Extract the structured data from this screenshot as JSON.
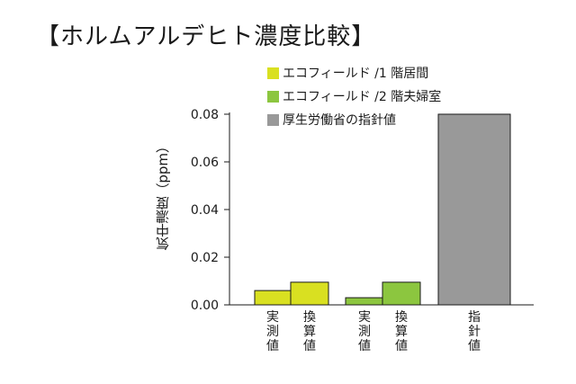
{
  "chart_data": {
    "type": "bar",
    "title": "【ホルムアルデヒト濃度比較】",
    "ylabel": "気中濃度（ppm）",
    "ylim": [
      0,
      0.08
    ],
    "yticks": [
      "0.00",
      "0.02",
      "0.04",
      "0.06",
      "0.08"
    ],
    "categories": [
      "実\n測\n値",
      "換\n算\n値",
      "実\n測\n値",
      "換\n算\n値",
      "指\n針\n値"
    ],
    "legend": [
      {
        "label": "エコフィールド /1 階居間",
        "color": "#d9e021"
      },
      {
        "label": "エコフィールド /2 階夫婦室",
        "color": "#8cc63f"
      },
      {
        "label": "厚生労働省の指針値",
        "color": "#999999"
      }
    ],
    "bars": [
      {
        "value": 0.006,
        "series": 0
      },
      {
        "value": 0.0095,
        "series": 0
      },
      {
        "value": 0.003,
        "series": 1
      },
      {
        "value": 0.0095,
        "series": 1
      },
      {
        "value": 0.08,
        "series": 2
      }
    ]
  }
}
